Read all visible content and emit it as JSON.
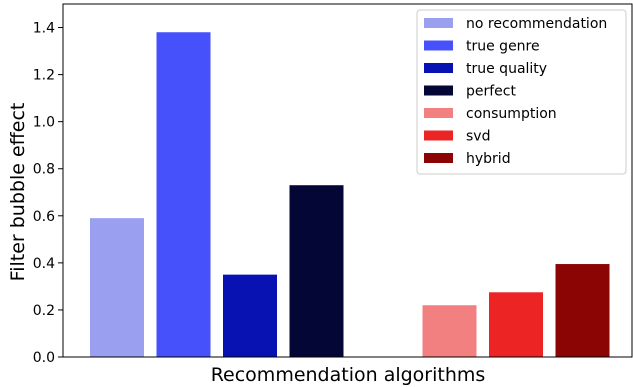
{
  "chart_data": {
    "type": "bar",
    "title": "",
    "xlabel": "Recommendation algorithms",
    "ylabel": "Filter bubble effect",
    "ylim": [
      0,
      1.5
    ],
    "yticks": [
      "0.0",
      "0.2",
      "0.4",
      "0.6",
      "0.8",
      "1.0",
      "1.2",
      "1.4"
    ],
    "grid": false,
    "legend_position": "top-right",
    "series": [
      {
        "name": "no recommendation",
        "value": 0.59,
        "color": "#9b9fef",
        "slot": 0
      },
      {
        "name": "true genre",
        "value": 1.38,
        "color": "#4650fb",
        "slot": 1
      },
      {
        "name": "true quality",
        "value": 0.35,
        "color": "#0812b2",
        "slot": 2
      },
      {
        "name": "perfect",
        "value": 0.73,
        "color": "#040735",
        "slot": 3
      },
      {
        "name": "consumption",
        "value": 0.22,
        "color": "#f38080",
        "slot": 5
      },
      {
        "name": "svd",
        "value": 0.275,
        "color": "#ec2424",
        "slot": 6
      },
      {
        "name": "hybrid",
        "value": 0.395,
        "color": "#8b0505",
        "slot": 7
      }
    ]
  }
}
